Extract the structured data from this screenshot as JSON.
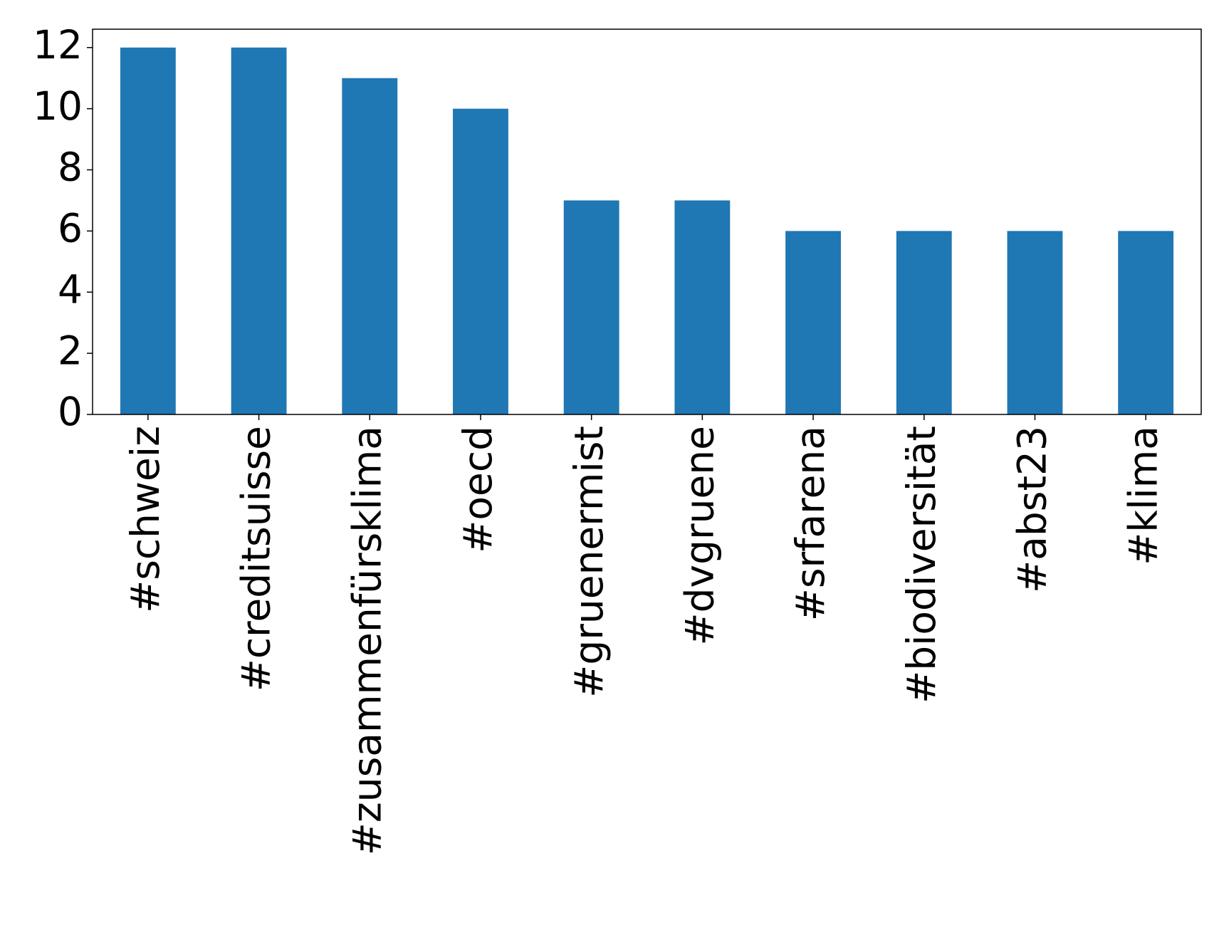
{
  "chart_data": {
    "type": "bar",
    "categories": [
      "#schweiz",
      "#creditsuisse",
      "#zusammenfürsklima",
      "#oecd",
      "#gruenermist",
      "#dvgruene",
      "#srfarena",
      "#biodiversität",
      "#abst23",
      "#klima"
    ],
    "values": [
      12,
      12,
      11,
      10,
      7,
      7,
      6,
      6,
      6,
      6
    ],
    "color": "#1f77b4",
    "ylim": [
      0,
      12.6
    ],
    "yticks": [
      0,
      2,
      4,
      6,
      8,
      10,
      12
    ],
    "grid": false
  }
}
